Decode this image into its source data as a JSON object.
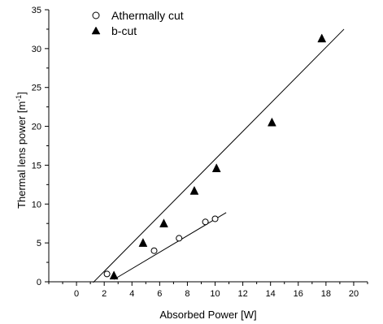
{
  "chart_data": {
    "type": "scatter",
    "title": "",
    "xlabel": "Absorbed Power [W]",
    "ylabel": "Thermal lens power [m",
    "ylabel_superscript": "-1",
    "ylabel_suffix": "]",
    "xlim": [
      -2,
      21
    ],
    "ylim": [
      0,
      35
    ],
    "x_ticks": [
      0,
      2,
      4,
      6,
      8,
      10,
      12,
      14,
      16,
      18,
      20
    ],
    "y_ticks": [
      0,
      5,
      10,
      15,
      20,
      25,
      30,
      35
    ],
    "grid": false,
    "legend_position": "top-left",
    "series": [
      {
        "name": "Athermally cut",
        "marker": "open-circle",
        "points": [
          {
            "x": 2.2,
            "y": 1.0
          },
          {
            "x": 5.6,
            "y": 4.0
          },
          {
            "x": 7.4,
            "y": 5.6
          },
          {
            "x": 9.3,
            "y": 7.7
          },
          {
            "x": 10.0,
            "y": 8.1
          }
        ],
        "fit_line": {
          "x": [
            2.7,
            10.8
          ],
          "y": [
            0.3,
            8.9
          ]
        }
      },
      {
        "name": "b-cut",
        "marker": "filled-triangle",
        "points": [
          {
            "x": 2.7,
            "y": 0.8
          },
          {
            "x": 4.8,
            "y": 5.0
          },
          {
            "x": 6.3,
            "y": 7.5
          },
          {
            "x": 8.5,
            "y": 11.7
          },
          {
            "x": 10.1,
            "y": 14.6
          },
          {
            "x": 14.1,
            "y": 20.5
          },
          {
            "x": 17.7,
            "y": 31.3
          }
        ],
        "fit_line": {
          "x": [
            1.2,
            19.3
          ],
          "y": [
            -0.1,
            32.5
          ]
        }
      }
    ]
  }
}
